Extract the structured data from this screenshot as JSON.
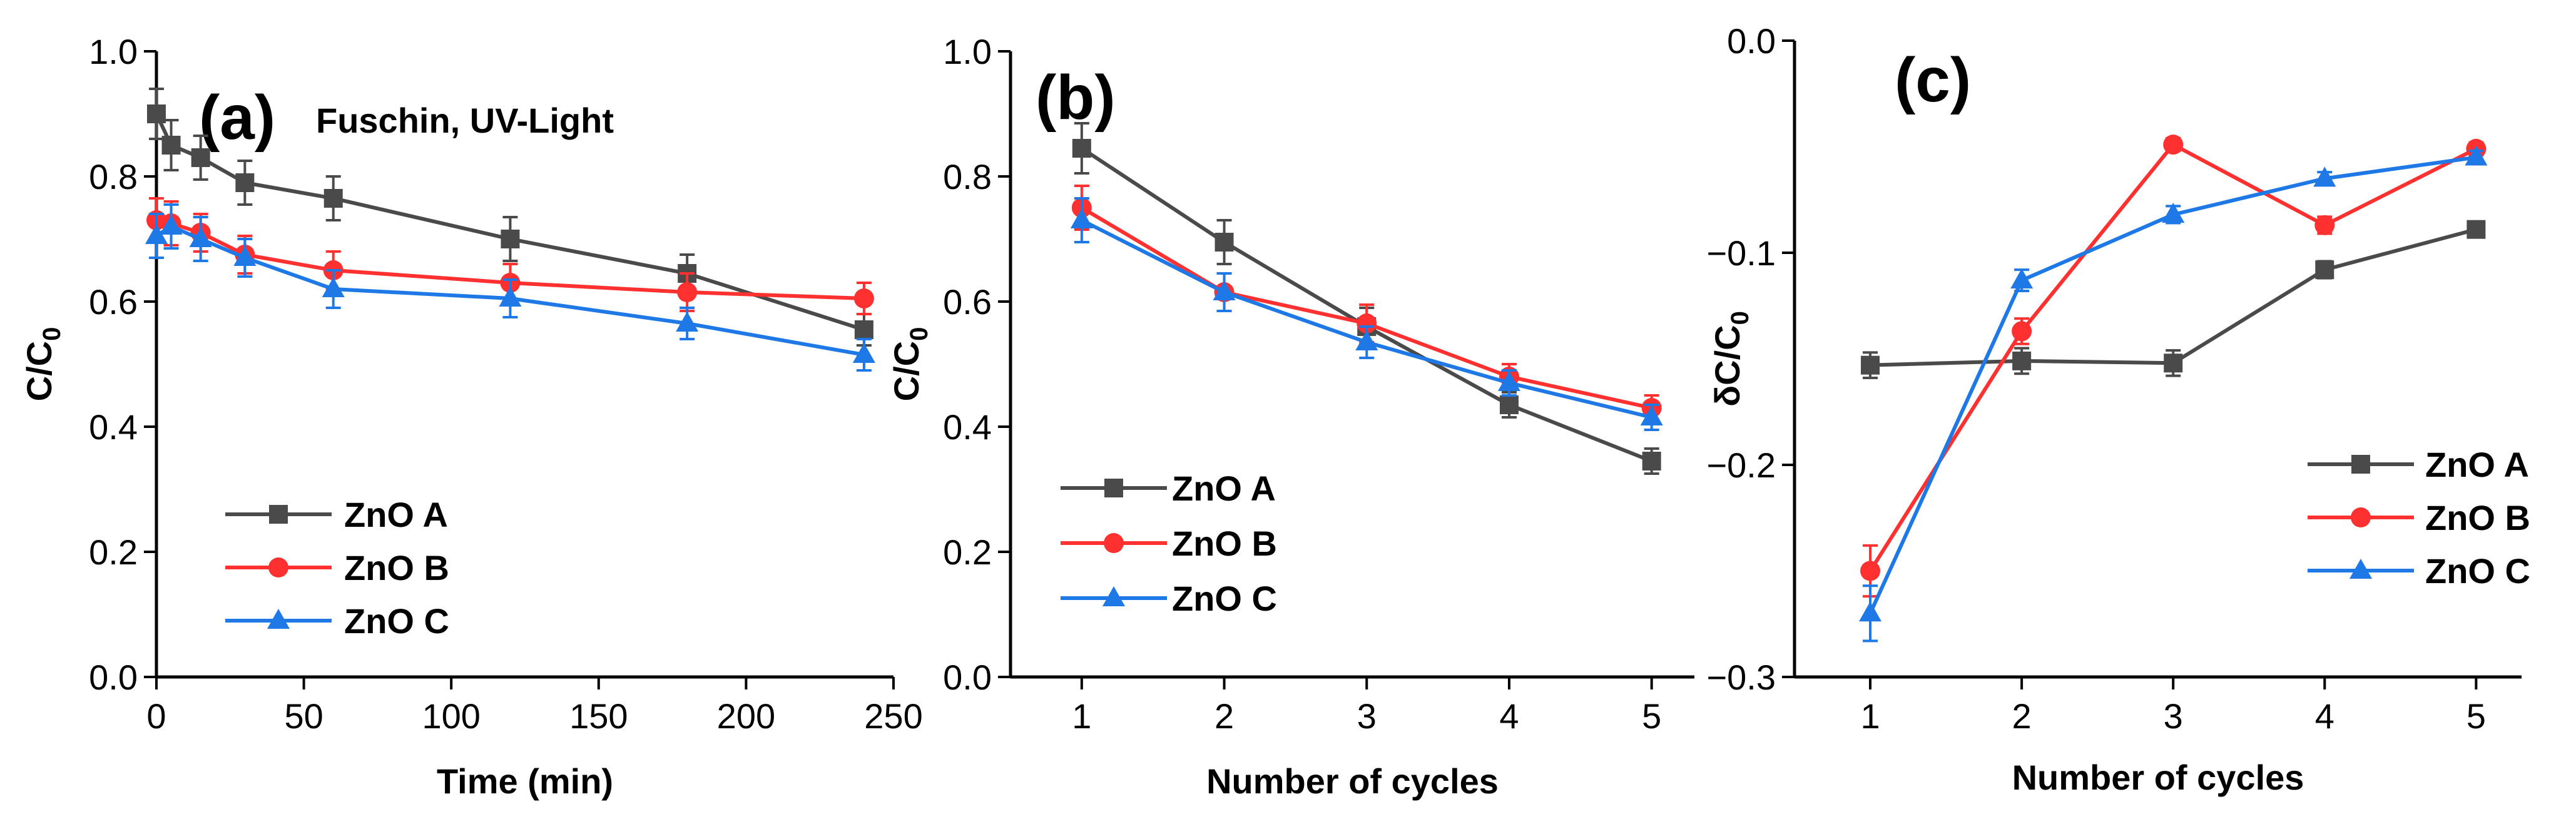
{
  "chart_data": [
    {
      "id": "a",
      "type": "line",
      "panel_label": "(a)",
      "annotation": "Fuschin, UV-Light",
      "xlabel": "Time (min)",
      "ylabel": "C/C",
      "ylabel_sub": "0",
      "xlim": [
        0,
        250
      ],
      "ylim": [
        0.0,
        1.0
      ],
      "xticks": [
        0,
        50,
        100,
        150,
        200,
        250
      ],
      "xtick_labels": [
        "0",
        "50",
        "100",
        "150",
        "200",
        "250"
      ],
      "yticks": [
        0.0,
        0.2,
        0.4,
        0.6,
        0.8,
        1.0
      ],
      "ytick_labels": [
        "0.0",
        "0.2",
        "0.4",
        "0.6",
        "0.8",
        "1.0"
      ],
      "legend_position": "bottom-left",
      "series": [
        {
          "name": "ZnO A",
          "color": "#4a4a4a",
          "marker": "square",
          "x": [
            0,
            5,
            15,
            30,
            60,
            120,
            180,
            240
          ],
          "y": [
            0.9,
            0.85,
            0.83,
            0.79,
            0.765,
            0.7,
            0.645,
            0.555
          ],
          "err": [
            0.04,
            0.04,
            0.035,
            0.035,
            0.035,
            0.035,
            0.03,
            0.025
          ]
        },
        {
          "name": "ZnO B",
          "color": "#ff3030",
          "marker": "circle",
          "x": [
            0,
            5,
            15,
            30,
            60,
            120,
            180,
            240
          ],
          "y": [
            0.73,
            0.725,
            0.71,
            0.675,
            0.65,
            0.63,
            0.615,
            0.605
          ],
          "err": [
            0.035,
            0.035,
            0.03,
            0.03,
            0.03,
            0.03,
            0.03,
            0.025
          ]
        },
        {
          "name": "ZnO C",
          "color": "#1e78e6",
          "marker": "triangle",
          "x": [
            0,
            5,
            15,
            30,
            60,
            120,
            180,
            240
          ],
          "y": [
            0.705,
            0.72,
            0.7,
            0.67,
            0.62,
            0.605,
            0.565,
            0.515
          ],
          "err": [
            0.035,
            0.035,
            0.035,
            0.03,
            0.03,
            0.03,
            0.025,
            0.025
          ]
        }
      ]
    },
    {
      "id": "b",
      "type": "line",
      "panel_label": "(b)",
      "xlabel": "Number of cycles",
      "ylabel": "C/C",
      "ylabel_sub": "0",
      "xlim": [
        0.5,
        5.3
      ],
      "ylim": [
        0.0,
        1.0
      ],
      "xticks": [
        1,
        2,
        3,
        4,
        5
      ],
      "xtick_labels": [
        "1",
        "2",
        "3",
        "4",
        "5"
      ],
      "yticks": [
        0.0,
        0.2,
        0.4,
        0.6,
        0.8,
        1.0
      ],
      "ytick_labels": [
        "0.0",
        "0.2",
        "0.4",
        "0.6",
        "0.8",
        "1.0"
      ],
      "legend_position": "bottom-left",
      "series": [
        {
          "name": "ZnO A",
          "color": "#4a4a4a",
          "marker": "square",
          "x": [
            1,
            2,
            3,
            4,
            5
          ],
          "y": [
            0.845,
            0.695,
            0.56,
            0.435,
            0.345
          ],
          "err": [
            0.04,
            0.035,
            0.03,
            0.02,
            0.02
          ]
        },
        {
          "name": "ZnO B",
          "color": "#ff3030",
          "marker": "circle",
          "x": [
            1,
            2,
            3,
            4,
            5
          ],
          "y": [
            0.75,
            0.615,
            0.565,
            0.48,
            0.43
          ],
          "err": [
            0.035,
            0.03,
            0.03,
            0.02,
            0.02
          ]
        },
        {
          "name": "ZnO C",
          "color": "#1e78e6",
          "marker": "triangle",
          "x": [
            1,
            2,
            3,
            4,
            5
          ],
          "y": [
            0.73,
            0.615,
            0.535,
            0.47,
            0.415
          ],
          "err": [
            0.035,
            0.03,
            0.025,
            0.02,
            0.02
          ]
        }
      ]
    },
    {
      "id": "c",
      "type": "line",
      "panel_label": "(c)",
      "xlabel": "Number of cycles",
      "ylabel": "δC/C",
      "ylabel_sub": "0",
      "xlim": [
        0.5,
        5.3
      ],
      "ylim": [
        -0.3,
        0.0
      ],
      "xticks": [
        1,
        2,
        3,
        4,
        5
      ],
      "xtick_labels": [
        "1",
        "2",
        "3",
        "4",
        "5"
      ],
      "yticks": [
        -0.3,
        -0.2,
        -0.1,
        0.0
      ],
      "ytick_labels": [
        "-0.3",
        "-0.2",
        "-0.1",
        "0.0"
      ],
      "legend_position": "right",
      "series": [
        {
          "name": "ZnO A",
          "color": "#4a4a4a",
          "marker": "square",
          "x": [
            1,
            2,
            3,
            4,
            5
          ],
          "y": [
            -0.153,
            -0.151,
            -0.152,
            -0.108,
            -0.089
          ],
          "err": [
            0.006,
            0.006,
            0.006,
            0.004,
            0.003
          ]
        },
        {
          "name": "ZnO B",
          "color": "#ff3030",
          "marker": "circle",
          "x": [
            1,
            2,
            3,
            4,
            5
          ],
          "y": [
            -0.25,
            -0.137,
            -0.049,
            -0.087,
            -0.051
          ],
          "err": [
            0.012,
            0.006,
            0.003,
            0.004,
            0.003
          ]
        },
        {
          "name": "ZnO C",
          "color": "#1e78e6",
          "marker": "triangle",
          "x": [
            1,
            2,
            3,
            4,
            5
          ],
          "y": [
            -0.27,
            -0.113,
            -0.082,
            -0.065,
            -0.055
          ],
          "err": [
            0.013,
            0.005,
            0.004,
            0.003,
            0.003
          ]
        }
      ]
    }
  ]
}
